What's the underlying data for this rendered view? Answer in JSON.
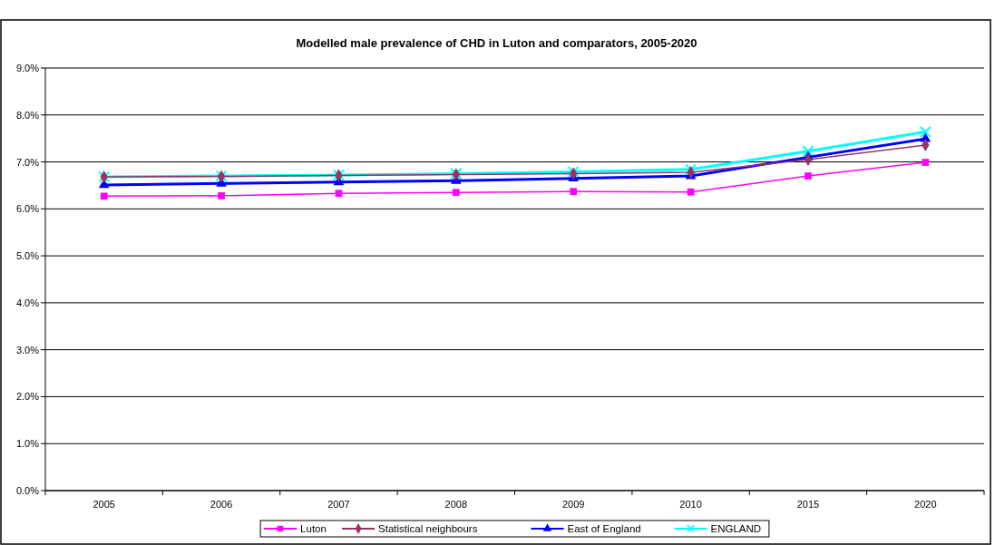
{
  "chart_data": {
    "type": "line",
    "title": "Modelled male prevalence of CHD in Luton and comparators, 2005-2020",
    "categories": [
      "2005",
      "2006",
      "2007",
      "2008",
      "2009",
      "2010",
      "2015",
      "2020"
    ],
    "series": [
      {
        "name": "Luton",
        "color": "#ff00ff",
        "marker": "square",
        "values": [
          6.27,
          6.28,
          6.33,
          6.35,
          6.37,
          6.36,
          6.7,
          6.99
        ]
      },
      {
        "name": "Statistical neighbours",
        "color": "#993366",
        "marker": "diamond",
        "values": [
          6.68,
          6.69,
          6.71,
          6.73,
          6.75,
          6.78,
          7.05,
          7.36
        ]
      },
      {
        "name": "East of England",
        "color": "#0000ff",
        "marker": "triangle",
        "values": [
          6.51,
          6.54,
          6.57,
          6.6,
          6.65,
          6.7,
          7.1,
          7.49
        ]
      },
      {
        "name": "ENGLAND",
        "color": "#00ffff",
        "marker": "cross",
        "values": [
          6.68,
          6.7,
          6.72,
          6.75,
          6.79,
          6.84,
          7.23,
          7.64
        ]
      }
    ],
    "ylim": [
      0,
      9
    ],
    "yticks": [
      {
        "value": 0,
        "label": "0.0%"
      },
      {
        "value": 1,
        "label": "1.0%"
      },
      {
        "value": 2,
        "label": "2.0%"
      },
      {
        "value": 3,
        "label": "3.0%"
      },
      {
        "value": 4,
        "label": "4.0%"
      },
      {
        "value": 5,
        "label": "5.0%"
      },
      {
        "value": 6,
        "label": "6.0%"
      },
      {
        "value": 7,
        "label": "7.0%"
      },
      {
        "value": 8,
        "label": "8.0%"
      },
      {
        "value": 9,
        "label": "9.0%"
      }
    ],
    "grid": "y",
    "legend": "bottom"
  }
}
